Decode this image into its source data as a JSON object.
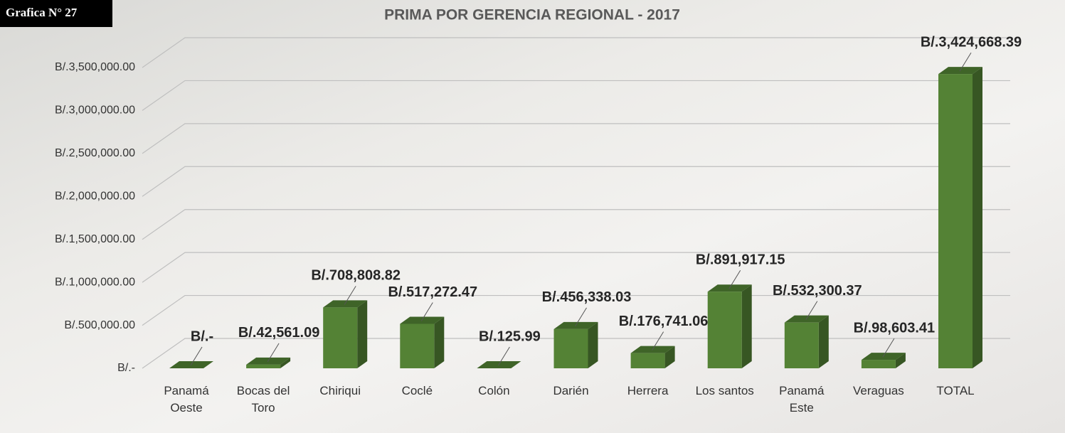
{
  "chart_data": {
    "type": "bar",
    "badge": "Grafica N° 27",
    "title": "PRIMA POR GERENCIA REGIONAL - 2017",
    "categories": [
      "Panamá Oeste",
      "Bocas del Toro",
      "Chiriqui",
      "Coclé",
      "Colón",
      "Darién",
      "Herrera",
      "Los santos",
      "Panamá Este",
      "Veraguas",
      "TOTAL"
    ],
    "values": [
      0,
      42561.09,
      708808.82,
      517272.47,
      125.99,
      456338.03,
      176741.06,
      891917.15,
      532300.37,
      98603.41,
      3424668.39
    ],
    "value_labels": [
      "B/.-",
      "B/.42,561.09",
      "B/.708,808.82",
      "B/.517,272.47",
      "B/.125.99",
      "B/.456,338.03",
      "B/.176,741.06",
      "B/.891,917.15",
      "B/.532,300.37",
      "B/.98,603.41",
      "B/.3,424,668.39"
    ],
    "color": "#548235",
    "ylim": [
      0,
      3500000
    ],
    "yticks": [
      {
        "value": 0,
        "label": "B/.-"
      },
      {
        "value": 500000,
        "label": "B/.500,000.00"
      },
      {
        "value": 1000000,
        "label": "B/.1,000,000.00"
      },
      {
        "value": 1500000,
        "label": "B/.1,500,000.00"
      },
      {
        "value": 2000000,
        "label": "B/.2,000,000.00"
      },
      {
        "value": 2500000,
        "label": "B/.2,500,000.00"
      },
      {
        "value": 3000000,
        "label": "B/.3,000,000.00"
      },
      {
        "value": 3500000,
        "label": "B/.3,500,000.00"
      }
    ],
    "grid": true
  }
}
